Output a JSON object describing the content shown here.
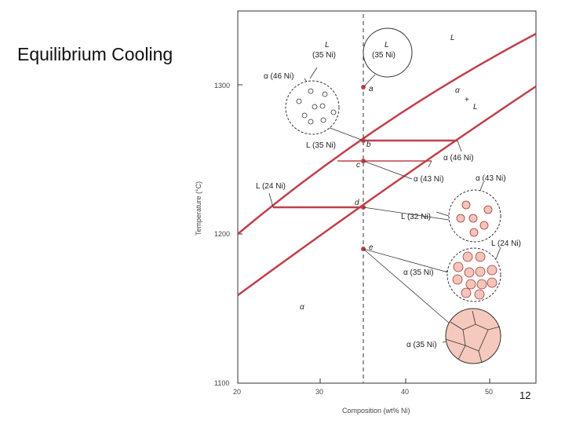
{
  "slide": {
    "title": "Equilibrium Cooling",
    "page_number": "12"
  },
  "axes": {
    "x_label": "Composition (wt% Ni)",
    "y_label": "Temperature (°C)",
    "x_ticks": [
      "20",
      "30",
      "40",
      "50"
    ],
    "y_ticks": [
      "1300",
      "1200",
      "1100"
    ],
    "x_range": [
      20,
      50
    ],
    "y_range": [
      1100,
      1300
    ]
  },
  "regions": {
    "liquid": "L",
    "two_phase_alpha": "α",
    "two_phase_plus": "+",
    "two_phase_L": "L",
    "solid": "α"
  },
  "points": {
    "a": "a",
    "b": "b",
    "c": "c",
    "d": "d",
    "e": "e"
  },
  "annotations": {
    "circle_a_L": "L",
    "circle_a_comp": "(35 Ni)",
    "circle_b_L": "L",
    "circle_b_comp": "(35 Ni)",
    "circle_b_alpha": "α (46 Ni)",
    "b_L": "L (35 Ni)",
    "b_alpha": "α (46 Ni)",
    "c_alpha_left": "α (43 Ni)",
    "c_alpha": "α (43 Ni)",
    "c_L": "L (32 Ni)",
    "d_L_left": "L (24 Ni)",
    "d_L": "L (24 Ni)",
    "d_alpha": "α (35 Ni)",
    "e_alpha": "α (35 Ni)"
  },
  "colors": {
    "phase_line": "#c0404a",
    "solid_fill": "#f5c9bd",
    "grain_fill": "#f3c5bb"
  }
}
